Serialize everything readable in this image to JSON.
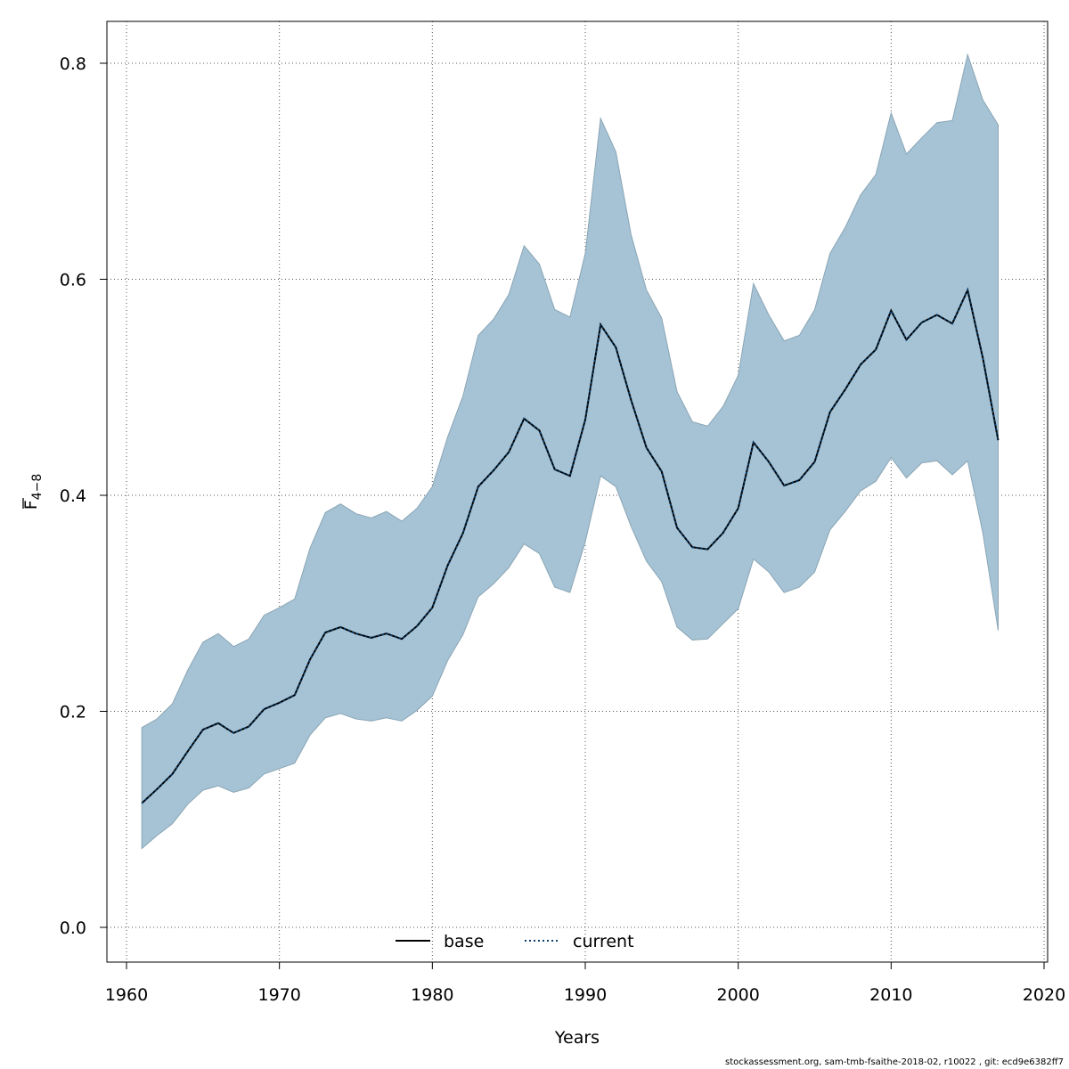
{
  "chart_data": {
    "type": "area",
    "xlabel": "Years",
    "ylabel_main": "F",
    "ylabel_sub": "4−8",
    "xlim": [
      1961,
      2017
    ],
    "ylim": [
      0.0,
      0.8
    ],
    "x_ticks": [
      1960,
      1970,
      1980,
      1990,
      2000,
      2010,
      2020
    ],
    "y_ticks": [
      0.0,
      0.2,
      0.4,
      0.6,
      0.8
    ],
    "y_tick_labels": [
      "0.0",
      "0.2",
      "0.4",
      "0.6",
      "0.8"
    ],
    "grid": true,
    "legend_position": "bottom-center",
    "colors": {
      "band": "#a5c3d5",
      "band_edge": "#8aa5b5",
      "current": "#0a3f6e",
      "base": "#000000"
    },
    "x": [
      1961,
      1962,
      1963,
      1964,
      1965,
      1966,
      1967,
      1968,
      1969,
      1970,
      1971,
      1972,
      1973,
      1974,
      1975,
      1976,
      1977,
      1978,
      1979,
      1980,
      1981,
      1982,
      1983,
      1984,
      1985,
      1986,
      1987,
      1988,
      1989,
      1990,
      1991,
      1992,
      1993,
      1994,
      1995,
      1996,
      1997,
      1998,
      1999,
      2000,
      2001,
      2002,
      2003,
      2004,
      2005,
      2006,
      2007,
      2008,
      2009,
      2010,
      2011,
      2012,
      2013,
      2014,
      2015,
      2016,
      2017
    ],
    "series": [
      {
        "name": "base",
        "style": "solid",
        "values": [
          0.115,
          0.128,
          0.142,
          0.163,
          0.183,
          0.189,
          0.18,
          0.186,
          0.202,
          0.208,
          0.215,
          0.248,
          0.273,
          0.278,
          0.272,
          0.268,
          0.272,
          0.267,
          0.279,
          0.296,
          0.335,
          0.365,
          0.408,
          0.423,
          0.44,
          0.471,
          0.46,
          0.424,
          0.418,
          0.47,
          0.558,
          0.537,
          0.488,
          0.444,
          0.422,
          0.37,
          0.352,
          0.35,
          0.365,
          0.388,
          0.449,
          0.431,
          0.409,
          0.414,
          0.431,
          0.477,
          0.498,
          0.521,
          0.535,
          0.571,
          0.544,
          0.56,
          0.567,
          0.559,
          0.59,
          0.527,
          0.451
        ]
      },
      {
        "name": "current",
        "style": "dotted",
        "values": [
          0.115,
          0.128,
          0.142,
          0.163,
          0.183,
          0.189,
          0.18,
          0.186,
          0.202,
          0.208,
          0.215,
          0.248,
          0.273,
          0.278,
          0.272,
          0.268,
          0.272,
          0.267,
          0.279,
          0.296,
          0.335,
          0.365,
          0.408,
          0.423,
          0.44,
          0.471,
          0.46,
          0.424,
          0.418,
          0.47,
          0.558,
          0.537,
          0.488,
          0.444,
          0.422,
          0.37,
          0.352,
          0.35,
          0.365,
          0.388,
          0.449,
          0.431,
          0.409,
          0.414,
          0.431,
          0.477,
          0.498,
          0.521,
          0.535,
          0.571,
          0.544,
          0.56,
          0.567,
          0.559,
          0.59,
          0.527,
          0.451
        ]
      }
    ],
    "band_upper": [
      0.185,
      0.193,
      0.207,
      0.238,
      0.264,
      0.272,
      0.26,
      0.267,
      0.289,
      0.296,
      0.304,
      0.351,
      0.384,
      0.392,
      0.383,
      0.379,
      0.385,
      0.376,
      0.388,
      0.408,
      0.454,
      0.492,
      0.548,
      0.563,
      0.586,
      0.631,
      0.614,
      0.572,
      0.565,
      0.624,
      0.749,
      0.718,
      0.641,
      0.59,
      0.564,
      0.496,
      0.468,
      0.464,
      0.482,
      0.511,
      0.596,
      0.567,
      0.543,
      0.548,
      0.572,
      0.624,
      0.648,
      0.678,
      0.697,
      0.754,
      0.716,
      0.731,
      0.745,
      0.747,
      0.808,
      0.766,
      0.743
    ],
    "band_lower": [
      0.073,
      0.085,
      0.096,
      0.114,
      0.127,
      0.131,
      0.125,
      0.129,
      0.142,
      0.147,
      0.152,
      0.178,
      0.194,
      0.198,
      0.193,
      0.191,
      0.194,
      0.191,
      0.201,
      0.214,
      0.247,
      0.271,
      0.306,
      0.318,
      0.333,
      0.355,
      0.346,
      0.315,
      0.31,
      0.357,
      0.418,
      0.408,
      0.371,
      0.339,
      0.32,
      0.278,
      0.266,
      0.267,
      0.281,
      0.295,
      0.341,
      0.329,
      0.31,
      0.315,
      0.329,
      0.368,
      0.385,
      0.404,
      0.413,
      0.435,
      0.416,
      0.43,
      0.432,
      0.419,
      0.432,
      0.365,
      0.275
    ]
  },
  "footer": "stockassessment.org, sam-tmb-fsaithe-2018-02, r10022 , git: ecd9e6382ff7"
}
